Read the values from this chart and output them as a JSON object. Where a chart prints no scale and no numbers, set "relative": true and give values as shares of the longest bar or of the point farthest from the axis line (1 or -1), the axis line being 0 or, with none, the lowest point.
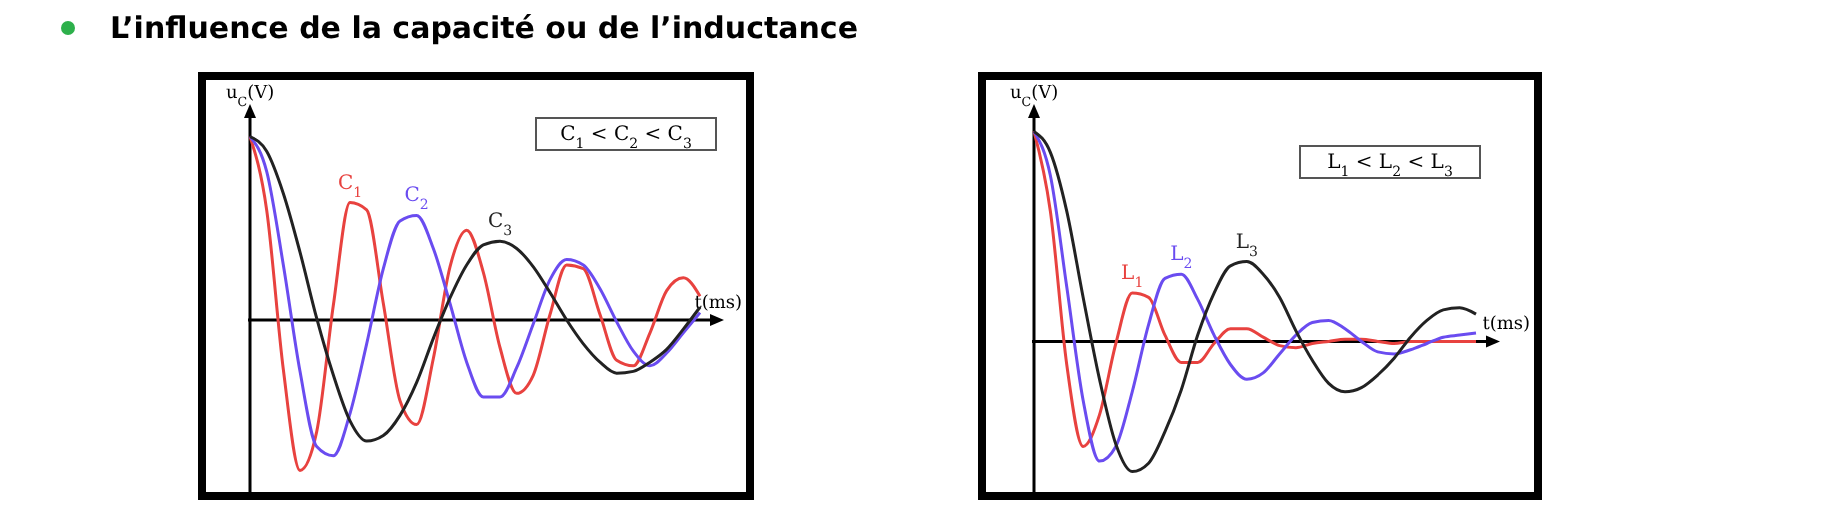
{
  "chart_data": [
    {
      "type": "line",
      "title": "L’influence de la capacité ou de l’inductance",
      "xlabel": "t(ms)",
      "ylabel": "u$_{C}$(V)",
      "relative": true,
      "marker": "none",
      "annotations": [
        "C$_{1}$ < C$_{2}$ < C$_{3}$"
      ],
      "categories": [
        null,
        null,
        null,
        null,
        null,
        null,
        null,
        null,
        null,
        null,
        null,
        null,
        null,
        null,
        null,
        null,
        null,
        null,
        null,
        null,
        null,
        null,
        null,
        null,
        null,
        null,
        null,
        null
      ],
      "series": [
        {
          "name": "C$_{1}$",
          "color": "#e8423f",
          "values": [
            1.0,
            0.6,
            -0.27,
            -0.82,
            -0.61,
            0.08,
            0.64,
            0.6,
            0.09,
            -0.44,
            -0.57,
            -0.21,
            0.29,
            0.49,
            0.26,
            -0.15,
            -0.4,
            -0.3,
            0.03,
            0.3,
            0.28,
            0.03,
            -0.22,
            -0.25,
            -0.07,
            0.16,
            0.23,
            0.13
          ]
        },
        {
          "name": "C$_{2}$",
          "color": "#6a4cf0",
          "values": [
            1.0,
            0.81,
            0.3,
            -0.28,
            -0.69,
            -0.74,
            -0.51,
            -0.13,
            0.28,
            0.54,
            0.57,
            0.39,
            0.09,
            -0.23,
            -0.42,
            -0.42,
            -0.26,
            -0.02,
            0.22,
            0.33,
            0.3,
            0.17,
            -0.01,
            -0.17,
            -0.25,
            -0.18,
            -0.07,
            0.04
          ]
        },
        {
          "name": "C$_{3}$",
          "color": "#222222",
          "values": [
            1.0,
            0.92,
            0.69,
            0.37,
            0.01,
            -0.3,
            -0.55,
            -0.66,
            -0.63,
            -0.52,
            -0.34,
            -0.1,
            0.12,
            0.3,
            0.41,
            0.43,
            0.39,
            0.29,
            0.15,
            0.0,
            -0.13,
            -0.23,
            -0.29,
            -0.28,
            -0.23,
            -0.16,
            -0.05,
            0.07
          ]
        }
      ]
    },
    {
      "type": "line",
      "xlabel": "t(ms)",
      "ylabel": "u$_{C}$(V)",
      "relative": true,
      "marker": "none",
      "annotations": [
        "L$_{1}$ < L$_{2}$ < L$_{3}$"
      ],
      "categories": [
        null,
        null,
        null,
        null,
        null,
        null,
        null,
        null,
        null,
        null,
        null,
        null,
        null,
        null,
        null,
        null,
        null,
        null,
        null,
        null,
        null,
        null,
        null,
        null,
        null,
        null,
        null,
        null
      ],
      "series": [
        {
          "name": "L$_{1}$",
          "color": "#e8423f",
          "values": [
            1.0,
            0.62,
            -0.11,
            -0.5,
            -0.35,
            -0.01,
            0.23,
            0.21,
            0.03,
            -0.1,
            -0.1,
            -0.01,
            0.06,
            0.06,
            0.02,
            -0.02,
            -0.03,
            -0.01,
            0.0,
            0.01,
            0.01,
            0.0,
            -0.01,
            0.0,
            0.0,
            0.0,
            0.0,
            0.0
          ]
        },
        {
          "name": "L$_{2}$",
          "color": "#6a4cf0",
          "values": [
            1.0,
            0.79,
            0.26,
            -0.28,
            -0.57,
            -0.5,
            -0.24,
            0.08,
            0.3,
            0.32,
            0.2,
            0.03,
            -0.11,
            -0.18,
            -0.15,
            -0.06,
            0.03,
            0.09,
            0.1,
            0.06,
            0.0,
            -0.05,
            -0.06,
            -0.04,
            -0.01,
            0.02,
            0.03,
            0.04
          ]
        },
        {
          "name": "L$_{3}$",
          "color": "#222222",
          "values": [
            1.0,
            0.9,
            0.62,
            0.21,
            -0.18,
            -0.49,
            -0.62,
            -0.58,
            -0.43,
            -0.23,
            0.03,
            0.23,
            0.36,
            0.38,
            0.32,
            0.21,
            0.05,
            -0.09,
            -0.2,
            -0.24,
            -0.22,
            -0.16,
            -0.08,
            0.02,
            0.1,
            0.15,
            0.16,
            0.13
          ]
        }
      ]
    }
  ]
}
